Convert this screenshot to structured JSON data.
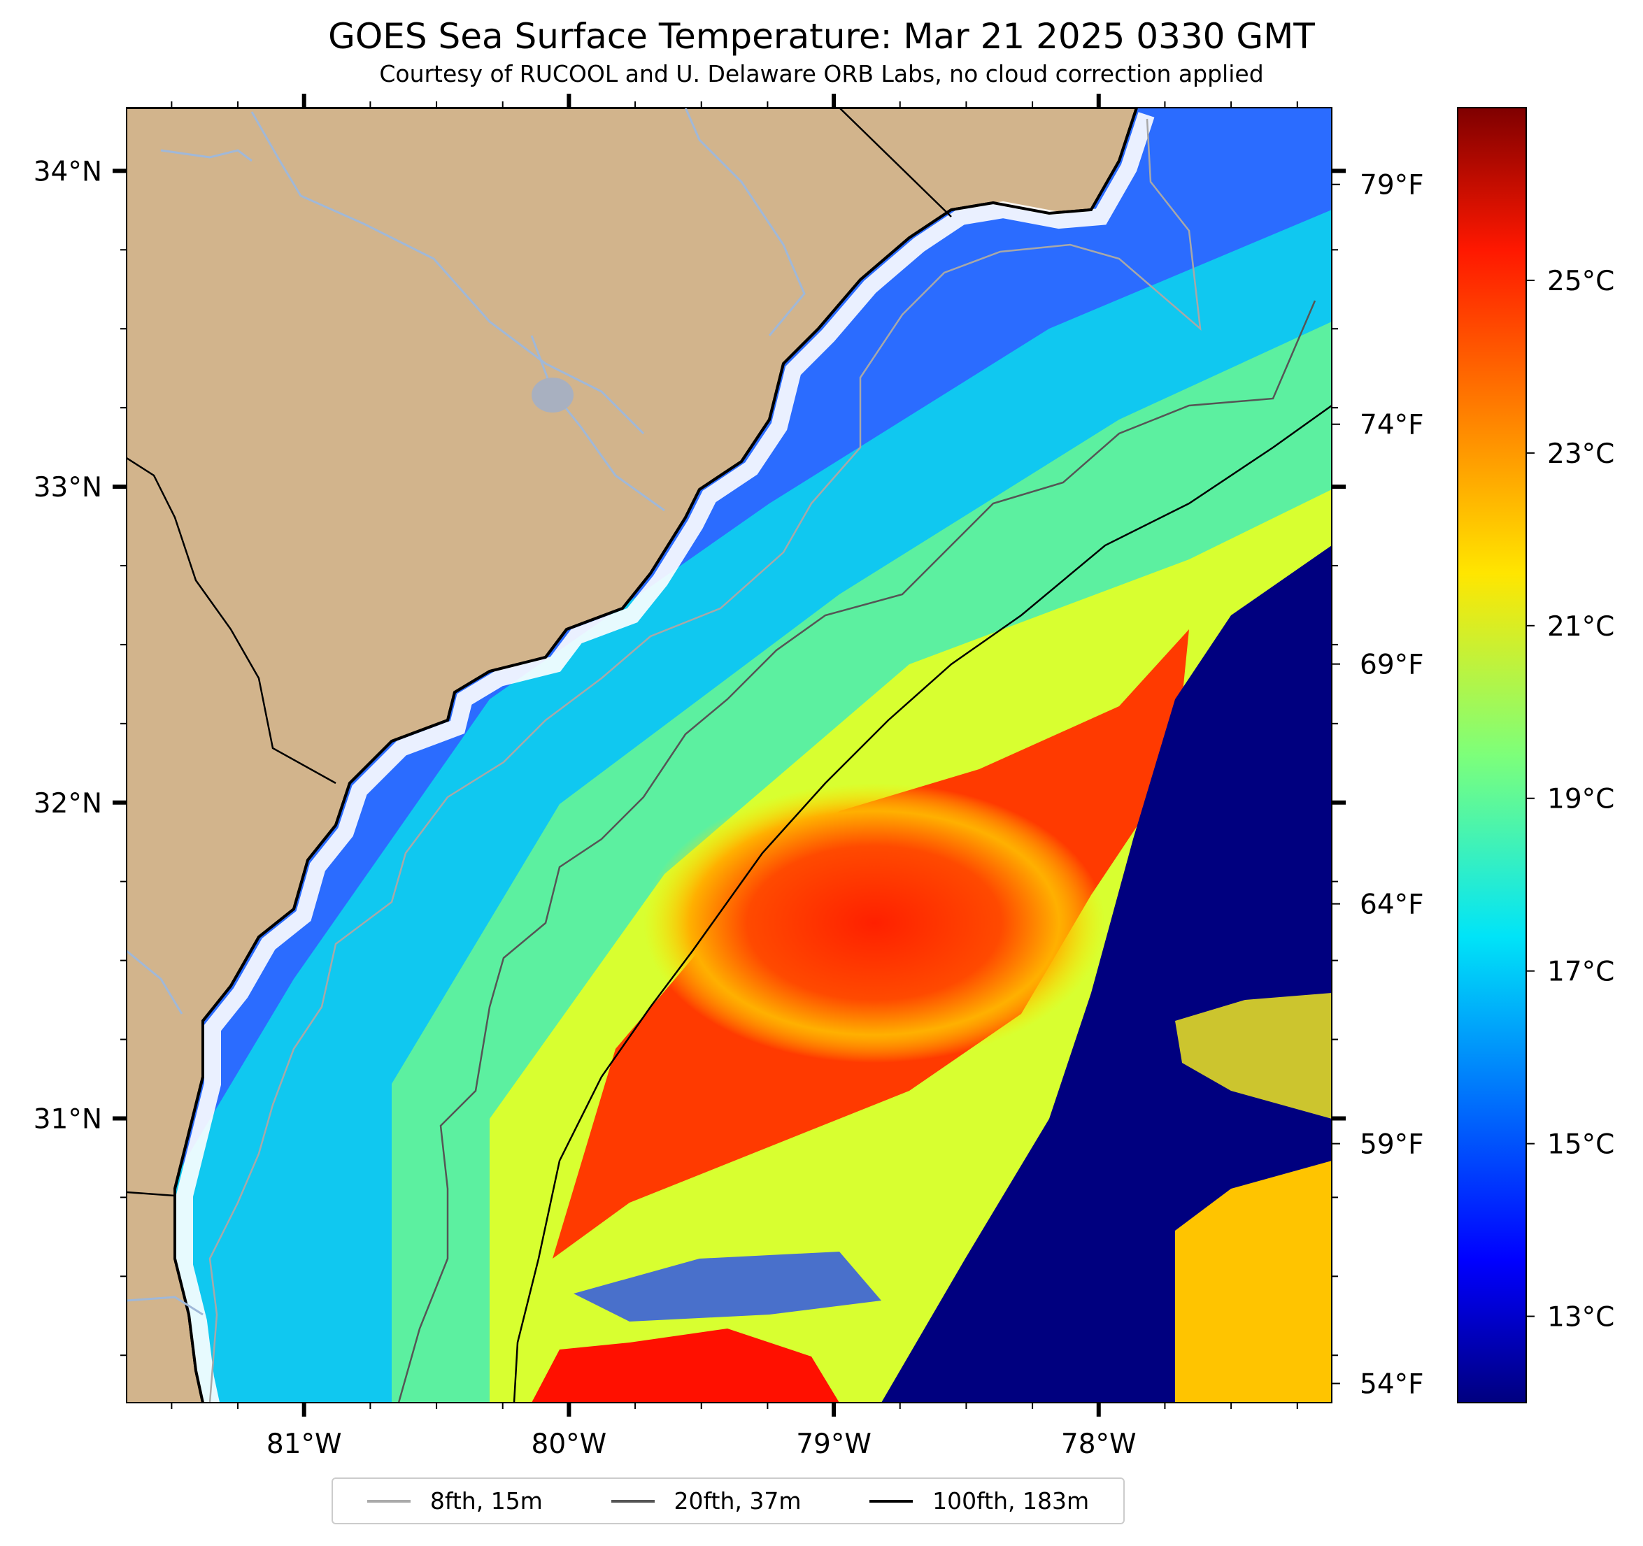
{
  "title": "GOES Sea Surface Temperature: Mar 21 2025 0330 GMT",
  "subtitle": "Courtesy of RUCOOL and U. Delaware ORB Labs, no cloud correction applied",
  "map": {
    "lon_range": [
      -81.67,
      -77.12
    ],
    "lat_range": [
      30.1,
      34.2
    ],
    "lat_labels": [
      {
        "value": 34,
        "label": "34°N"
      },
      {
        "value": 33,
        "label": "33°N"
      },
      {
        "value": 32,
        "label": "32°N"
      },
      {
        "value": 31,
        "label": "31°N"
      }
    ],
    "lon_labels": [
      {
        "value": -81,
        "label": "81°W"
      },
      {
        "value": -80,
        "label": "80°W"
      },
      {
        "value": -79,
        "label": "79°W"
      },
      {
        "value": -78,
        "label": "78°W"
      }
    ],
    "colors": {
      "land": "#d2b48c",
      "water_edge": "#ffffff",
      "river": "#a0b8d8"
    }
  },
  "colorbar": {
    "colormap": "jet",
    "c_range": [
      12,
      27
    ],
    "celsius_labels": [
      {
        "value": 13,
        "label": "13°C"
      },
      {
        "value": 15,
        "label": "15°C"
      },
      {
        "value": 17,
        "label": "17°C"
      },
      {
        "value": 19,
        "label": "19°C"
      },
      {
        "value": 21,
        "label": "21°C"
      },
      {
        "value": 23,
        "label": "23°C"
      },
      {
        "value": 25,
        "label": "25°C"
      }
    ],
    "fahrenheit_labels": [
      {
        "value": 54,
        "label": "54°F"
      },
      {
        "value": 59,
        "label": "59°F"
      },
      {
        "value": 64,
        "label": "64°F"
      },
      {
        "value": 69,
        "label": "69°F"
      },
      {
        "value": 74,
        "label": "74°F"
      },
      {
        "value": 79,
        "label": "79°F"
      }
    ]
  },
  "legend": [
    {
      "label": "8fth, 15m",
      "color": "#aaaaaa"
    },
    {
      "label": "20fth, 37m",
      "color": "#555555"
    },
    {
      "label": "100fth, 183m",
      "color": "#000000"
    }
  ]
}
